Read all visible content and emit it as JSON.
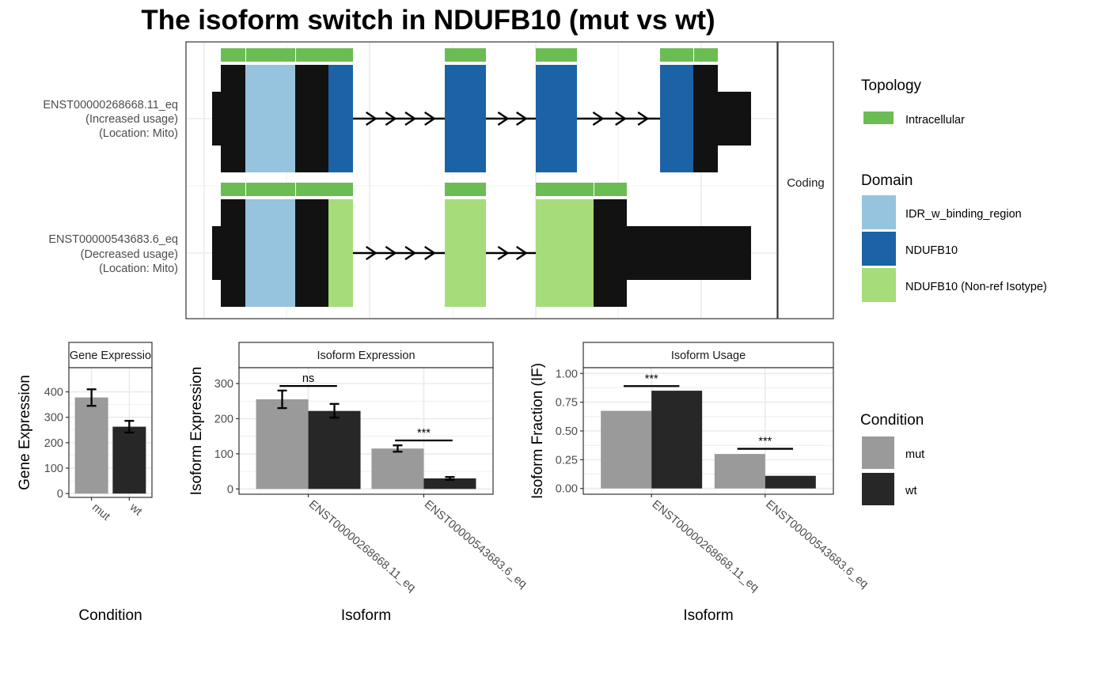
{
  "title": "The isoform switch in NDUFB10 (mut vs wt)",
  "colors": {
    "intracellular": "#6BBD53",
    "idr": "#96C3DD",
    "ndufb10": "#1C62A7",
    "ndufb10_nonref": "#A6DC79",
    "exon": "#121212",
    "mut": "#9A9A9A",
    "wt": "#272727",
    "grid": "#EBEBEB",
    "panel_border": "#333333"
  },
  "legend": {
    "topology_title": "Topology",
    "topology_items": [
      {
        "label": "Intracellular",
        "color_key": "intracellular"
      }
    ],
    "domain_title": "Domain",
    "domain_items": [
      {
        "label": "IDR_w_binding_region",
        "color_key": "idr"
      },
      {
        "label": "NDUFB10",
        "color_key": "ndufb10"
      },
      {
        "label": "NDUFB10 (Non-ref Isotype)",
        "color_key": "ndufb10_nonref"
      }
    ],
    "condition_title": "Condition",
    "condition_items": [
      {
        "label": "mut",
        "color_key": "mut"
      },
      {
        "label": "wt",
        "color_key": "wt"
      }
    ]
  },
  "chart_data": [
    {
      "type": "gene-structure",
      "strip_label": "Coding",
      "isoforms": [
        {
          "id": "ENST00000268668.11_eq",
          "label_lines": [
            "ENST00000268668.11_eq",
            "(Increased usage)",
            "(Location: Mito)"
          ],
          "arrow_gaps": [
            4,
            2,
            3
          ]
        },
        {
          "id": "ENST00000543683.6_eq",
          "label_lines": [
            "ENST00000543683.6_eq",
            "(Decreased usage)",
            "(Location: Mito)"
          ],
          "arrow_gaps": [
            4,
            2
          ]
        }
      ]
    },
    {
      "type": "bar",
      "title": "Gene Expression",
      "strip_label": "Gene Expressio",
      "xlabel": "Condition",
      "ylabel": "Gene Expression",
      "categories": [
        "mut",
        "wt"
      ],
      "values": [
        378,
        263
      ],
      "errors": [
        [
          345,
          410
        ],
        [
          240,
          286
        ]
      ],
      "color_keys": [
        "mut",
        "wt"
      ],
      "ylim": [
        -15,
        495
      ],
      "yticks": [
        0,
        100,
        200,
        300,
        400
      ],
      "ytick_labels": [
        "0",
        "100",
        "200",
        "300",
        "400"
      ]
    },
    {
      "type": "bar",
      "title": "Isoform Expression",
      "strip_label": "Isoform Expression",
      "xlabel": "Isoform",
      "ylabel": "Isoform Expression",
      "categories": [
        "ENST00000268668.11_eq",
        "ENST00000543683.6_eq"
      ],
      "series": [
        {
          "name": "mut",
          "color_key": "mut",
          "values": [
            255,
            115
          ],
          "errors": [
            [
              230,
              280
            ],
            [
              106,
              124
            ]
          ]
        },
        {
          "name": "wt",
          "color_key": "wt",
          "values": [
            222,
            30
          ],
          "errors": [
            [
              203,
              242
            ],
            [
              26,
              34
            ]
          ]
        }
      ],
      "significance": [
        {
          "label": "ns",
          "y": 293
        },
        {
          "label": "***",
          "y": 138
        }
      ],
      "ylim": [
        -15,
        345
      ],
      "yticks": [
        0,
        100,
        200,
        300
      ],
      "ytick_labels": [
        "0",
        "100",
        "200",
        "300"
      ]
    },
    {
      "type": "bar",
      "title": "Isoform Usage",
      "strip_label": "Isoform Usage",
      "xlabel": "Isoform",
      "ylabel": "Isoform Fraction (IF)",
      "categories": [
        "ENST00000268668.11_eq",
        "ENST00000543683.6_eq"
      ],
      "series": [
        {
          "name": "mut",
          "color_key": "mut",
          "values": [
            0.675,
            0.3
          ]
        },
        {
          "name": "wt",
          "color_key": "wt",
          "values": [
            0.85,
            0.11
          ]
        }
      ],
      "significance": [
        {
          "label": "***",
          "y": 0.89
        },
        {
          "label": "***",
          "y": 0.345
        }
      ],
      "ylim": [
        -0.05,
        1.05
      ],
      "yticks": [
        0,
        0.25,
        0.5,
        0.75,
        1.0
      ],
      "ytick_labels": [
        "0.00",
        "0.25",
        "0.50",
        "0.75",
        "1.00"
      ]
    }
  ]
}
